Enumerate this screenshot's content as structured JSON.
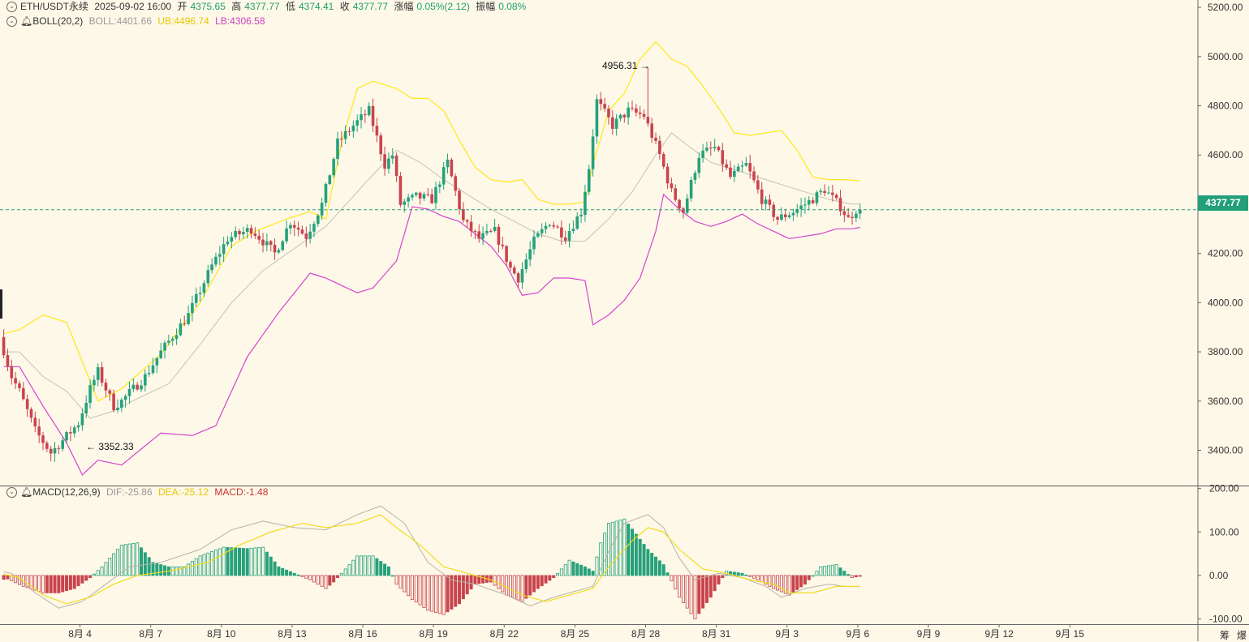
{
  "header": {
    "symbol": "ETH/USDT永续",
    "datetime": "2025-09-02 16:00",
    "open_label": "开",
    "open": "4375.65",
    "high_label": "高",
    "high": "4377.77",
    "low_label": "低",
    "low": "4374.41",
    "close_label": "收",
    "close": "4377.77",
    "change_label": "涨幅",
    "change": "0.05%(2.12)",
    "amp_label": "振幅",
    "amp": "0.08%"
  },
  "boll": {
    "name": "BOLL(20,2)",
    "mid_label": "BOLL:4401.66",
    "ub_label": "UB:4496.74",
    "lb_label": "LB:4306.58"
  },
  "macd": {
    "name": "MACD(12,26,9)",
    "dif_label": "DIF:-25.86",
    "dea_label": "DEA:-25.12",
    "macd_label": "MACD:-1.48"
  },
  "last_price": "4377.77",
  "annotations": {
    "high": "4956.31",
    "low": "3352.33"
  },
  "toolbar": {
    "chip1": "筹",
    "chip2": "爆"
  },
  "colors": {
    "up": "#26a17b",
    "down": "#c9444d",
    "ub": "#ffe817",
    "lb": "#d544cf",
    "mid": "#c7c1b4",
    "grid": "#d9d4c4",
    "dea": "#f2dc1e",
    "dif": "#b8b3a8"
  },
  "chart_data": {
    "type": "candlestick",
    "interval": "4h",
    "y_ticks": [
      5200,
      5000,
      4800,
      4600,
      4400,
      4200,
      4000,
      3800,
      3600,
      3400
    ],
    "y_tick_labels": [
      "5200.00",
      "5000.00",
      "4800.00",
      "4600.00",
      "4400.00",
      "4200.00",
      "4000.00",
      "3800.00",
      "3600.00",
      "3400.00"
    ],
    "ylim": [
      3260,
      5230
    ],
    "x_tick_labels": [
      "8月 4",
      "8月 7",
      "8月 10",
      "8月 13",
      "8月 16",
      "8月 19",
      "8月 22",
      "8月 25",
      "8月 28",
      "8月 31",
      "9月 3",
      "9月 6",
      "9月 9",
      "9月 12",
      "9月 15"
    ],
    "x_tick_start_day": 4,
    "close_anchors": [
      [
        -1,
        3860
      ],
      [
        0,
        3860
      ],
      [
        3,
        3700
      ],
      [
        5,
        3640
      ],
      [
        9,
        3480
      ],
      [
        13,
        3390
      ],
      [
        16,
        3440
      ],
      [
        20,
        3510
      ],
      [
        23,
        3650
      ],
      [
        25,
        3720
      ],
      [
        29,
        3580
      ],
      [
        31,
        3600
      ],
      [
        37,
        3700
      ],
      [
        41,
        3800
      ],
      [
        48,
        3950
      ],
      [
        54,
        4150
      ],
      [
        58,
        4260
      ],
      [
        64,
        4300
      ],
      [
        70,
        4200
      ],
      [
        74,
        4330
      ],
      [
        78,
        4270
      ],
      [
        82,
        4400
      ],
      [
        86,
        4650
      ],
      [
        90,
        4720
      ],
      [
        94,
        4780
      ],
      [
        98,
        4560
      ],
      [
        100,
        4600
      ],
      [
        102,
        4400
      ],
      [
        106,
        4430
      ],
      [
        110,
        4420
      ],
      [
        114,
        4570
      ],
      [
        118,
        4330
      ],
      [
        122,
        4260
      ],
      [
        126,
        4290
      ],
      [
        130,
        4140
      ],
      [
        132,
        4100
      ],
      [
        136,
        4250
      ],
      [
        140,
        4330
      ],
      [
        144,
        4270
      ],
      [
        148,
        4370
      ],
      [
        150,
        4550
      ],
      [
        152,
        4820
      ],
      [
        156,
        4720
      ],
      [
        160,
        4780
      ],
      [
        164,
        4760
      ],
      [
        168,
        4600
      ],
      [
        171,
        4450
      ],
      [
        174,
        4370
      ],
      [
        178,
        4600
      ],
      [
        182,
        4630
      ],
      [
        186,
        4510
      ],
      [
        190,
        4560
      ],
      [
        194,
        4420
      ],
      [
        198,
        4340
      ],
      [
        202,
        4370
      ],
      [
        206,
        4410
      ],
      [
        210,
        4460
      ],
      [
        214,
        4390
      ],
      [
        216,
        4340
      ],
      [
        218,
        4378
      ]
    ],
    "special_extremes": [
      {
        "index": 13,
        "low": 3352.33
      },
      {
        "index": 164,
        "high": 4956.31
      }
    ],
    "boll_ub_anchors": [
      [
        -1,
        3870
      ],
      [
        4,
        3890
      ],
      [
        10,
        3950
      ],
      [
        16,
        3920
      ],
      [
        20,
        3760
      ],
      [
        24,
        3600
      ],
      [
        30,
        3650
      ],
      [
        40,
        3790
      ],
      [
        50,
        4000
      ],
      [
        58,
        4230
      ],
      [
        64,
        4290
      ],
      [
        72,
        4340
      ],
      [
        78,
        4370
      ],
      [
        82,
        4340
      ],
      [
        86,
        4650
      ],
      [
        90,
        4870
      ],
      [
        94,
        4900
      ],
      [
        100,
        4870
      ],
      [
        104,
        4830
      ],
      [
        108,
        4830
      ],
      [
        112,
        4780
      ],
      [
        116,
        4660
      ],
      [
        120,
        4550
      ],
      [
        124,
        4500
      ],
      [
        128,
        4490
      ],
      [
        132,
        4500
      ],
      [
        136,
        4420
      ],
      [
        140,
        4400
      ],
      [
        144,
        4400
      ],
      [
        148,
        4410
      ],
      [
        150,
        4560
      ],
      [
        154,
        4780
      ],
      [
        158,
        4850
      ],
      [
        162,
        4990
      ],
      [
        166,
        5060
      ],
      [
        170,
        4990
      ],
      [
        174,
        4960
      ],
      [
        178,
        4880
      ],
      [
        182,
        4790
      ],
      [
        186,
        4690
      ],
      [
        190,
        4680
      ],
      [
        194,
        4690
      ],
      [
        198,
        4700
      ],
      [
        202,
        4620
      ],
      [
        206,
        4510
      ],
      [
        210,
        4500
      ],
      [
        214,
        4500
      ],
      [
        218,
        4495
      ]
    ],
    "boll_lb_anchors": [
      [
        -1,
        3740
      ],
      [
        4,
        3740
      ],
      [
        10,
        3580
      ],
      [
        16,
        3430
      ],
      [
        20,
        3300
      ],
      [
        24,
        3360
      ],
      [
        30,
        3340
      ],
      [
        40,
        3470
      ],
      [
        48,
        3460
      ],
      [
        54,
        3500
      ],
      [
        62,
        3780
      ],
      [
        70,
        3960
      ],
      [
        78,
        4120
      ],
      [
        82,
        4100
      ],
      [
        86,
        4070
      ],
      [
        90,
        4040
      ],
      [
        94,
        4060
      ],
      [
        100,
        4170
      ],
      [
        104,
        4390
      ],
      [
        108,
        4380
      ],
      [
        112,
        4350
      ],
      [
        116,
        4330
      ],
      [
        120,
        4280
      ],
      [
        124,
        4230
      ],
      [
        128,
        4150
      ],
      [
        132,
        4030
      ],
      [
        136,
        4040
      ],
      [
        140,
        4100
      ],
      [
        144,
        4100
      ],
      [
        148,
        4090
      ],
      [
        150,
        3910
      ],
      [
        154,
        3950
      ],
      [
        158,
        4010
      ],
      [
        162,
        4100
      ],
      [
        166,
        4290
      ],
      [
        168,
        4440
      ],
      [
        172,
        4380
      ],
      [
        176,
        4330
      ],
      [
        180,
        4310
      ],
      [
        184,
        4330
      ],
      [
        188,
        4360
      ],
      [
        192,
        4320
      ],
      [
        196,
        4290
      ],
      [
        200,
        4260
      ],
      [
        204,
        4270
      ],
      [
        208,
        4280
      ],
      [
        212,
        4300
      ],
      [
        216,
        4300
      ],
      [
        218,
        4306
      ]
    ],
    "boll_mid_anchors": [
      [
        -1,
        3800
      ],
      [
        4,
        3800
      ],
      [
        10,
        3700
      ],
      [
        16,
        3640
      ],
      [
        22,
        3530
      ],
      [
        28,
        3560
      ],
      [
        34,
        3610
      ],
      [
        42,
        3670
      ],
      [
        50,
        3830
      ],
      [
        58,
        4000
      ],
      [
        66,
        4130
      ],
      [
        74,
        4220
      ],
      [
        82,
        4310
      ],
      [
        90,
        4450
      ],
      [
        94,
        4520
      ],
      [
        100,
        4620
      ],
      [
        106,
        4570
      ],
      [
        112,
        4500
      ],
      [
        118,
        4440
      ],
      [
        124,
        4380
      ],
      [
        130,
        4330
      ],
      [
        136,
        4280
      ],
      [
        142,
        4250
      ],
      [
        148,
        4250
      ],
      [
        154,
        4340
      ],
      [
        160,
        4450
      ],
      [
        166,
        4600
      ],
      [
        170,
        4690
      ],
      [
        174,
        4640
      ],
      [
        180,
        4570
      ],
      [
        186,
        4540
      ],
      [
        192,
        4510
      ],
      [
        198,
        4480
      ],
      [
        204,
        4450
      ],
      [
        210,
        4420
      ],
      [
        216,
        4400
      ],
      [
        218,
        4402
      ]
    ],
    "macd_y_ticks": [
      200,
      100,
      0,
      -100
    ],
    "macd_y_tick_labels": [
      "200.00",
      "100.00",
      "0.00",
      "-100.00"
    ],
    "macd_ylim": [
      -112,
      205
    ],
    "macd_hist_anchors": [
      [
        -1,
        -10
      ],
      [
        1,
        -8
      ],
      [
        5,
        -25
      ],
      [
        10,
        -40
      ],
      [
        14,
        -40
      ],
      [
        18,
        -30
      ],
      [
        22,
        -5
      ],
      [
        25,
        20
      ],
      [
        30,
        70
      ],
      [
        34,
        75
      ],
      [
        38,
        30
      ],
      [
        42,
        20
      ],
      [
        46,
        20
      ],
      [
        50,
        45
      ],
      [
        56,
        65
      ],
      [
        62,
        62
      ],
      [
        66,
        65
      ],
      [
        70,
        20
      ],
      [
        74,
        5
      ],
      [
        78,
        -10
      ],
      [
        82,
        -30
      ],
      [
        84,
        -15
      ],
      [
        86,
        5
      ],
      [
        90,
        45
      ],
      [
        94,
        45
      ],
      [
        98,
        20
      ],
      [
        100,
        -20
      ],
      [
        104,
        -55
      ],
      [
        108,
        -80
      ],
      [
        112,
        -90
      ],
      [
        116,
        -65
      ],
      [
        120,
        -20
      ],
      [
        124,
        -15
      ],
      [
        128,
        -45
      ],
      [
        132,
        -60
      ],
      [
        136,
        -30
      ],
      [
        140,
        -5
      ],
      [
        144,
        35
      ],
      [
        148,
        20
      ],
      [
        150,
        10
      ],
      [
        152,
        75
      ],
      [
        154,
        120
      ],
      [
        158,
        130
      ],
      [
        164,
        60
      ],
      [
        168,
        25
      ],
      [
        172,
        -50
      ],
      [
        176,
        -100
      ],
      [
        180,
        -50
      ],
      [
        184,
        10
      ],
      [
        188,
        5
      ],
      [
        192,
        -10
      ],
      [
        196,
        -30
      ],
      [
        200,
        -45
      ],
      [
        204,
        -20
      ],
      [
        208,
        20
      ],
      [
        212,
        25
      ],
      [
        216,
        -5
      ],
      [
        218,
        -1.48
      ]
    ],
    "macd_dif_anchors": [
      [
        -1,
        10
      ],
      [
        2,
        5
      ],
      [
        8,
        -40
      ],
      [
        14,
        -75
      ],
      [
        20,
        -60
      ],
      [
        26,
        -20
      ],
      [
        32,
        20
      ],
      [
        40,
        30
      ],
      [
        50,
        60
      ],
      [
        58,
        105
      ],
      [
        66,
        125
      ],
      [
        74,
        110
      ],
      [
        82,
        105
      ],
      [
        90,
        140
      ],
      [
        96,
        160
      ],
      [
        102,
        120
      ],
      [
        108,
        30
      ],
      [
        114,
        -10
      ],
      [
        120,
        -20
      ],
      [
        128,
        -45
      ],
      [
        134,
        -70
      ],
      [
        140,
        -50
      ],
      [
        146,
        -35
      ],
      [
        150,
        -25
      ],
      [
        154,
        55
      ],
      [
        158,
        120
      ],
      [
        164,
        140
      ],
      [
        168,
        110
      ],
      [
        172,
        40
      ],
      [
        176,
        -10
      ],
      [
        182,
        5
      ],
      [
        188,
        -5
      ],
      [
        194,
        -25
      ],
      [
        198,
        -50
      ],
      [
        204,
        -30
      ],
      [
        210,
        -20
      ],
      [
        214,
        -25
      ],
      [
        218,
        -25.86
      ]
    ],
    "macd_dif_style": {
      "ub_color_key": "dif"
    },
    "macd_dea_anchors": [
      [
        -1,
        5
      ],
      [
        4,
        -5
      ],
      [
        10,
        -45
      ],
      [
        16,
        -65
      ],
      [
        22,
        -50
      ],
      [
        28,
        -20
      ],
      [
        34,
        0
      ],
      [
        42,
        10
      ],
      [
        52,
        30
      ],
      [
        60,
        70
      ],
      [
        68,
        100
      ],
      [
        76,
        120
      ],
      [
        82,
        110
      ],
      [
        90,
        120
      ],
      [
        96,
        140
      ],
      [
        100,
        110
      ],
      [
        106,
        70
      ],
      [
        112,
        20
      ],
      [
        118,
        5
      ],
      [
        124,
        -10
      ],
      [
        132,
        -45
      ],
      [
        138,
        -60
      ],
      [
        144,
        -45
      ],
      [
        150,
        -30
      ],
      [
        154,
        20
      ],
      [
        160,
        80
      ],
      [
        164,
        110
      ],
      [
        168,
        100
      ],
      [
        172,
        60
      ],
      [
        178,
        15
      ],
      [
        184,
        5
      ],
      [
        190,
        -10
      ],
      [
        196,
        -20
      ],
      [
        200,
        -40
      ],
      [
        206,
        -40
      ],
      [
        212,
        -25
      ],
      [
        218,
        -25.12
      ]
    ],
    "n_candles": 219
  }
}
